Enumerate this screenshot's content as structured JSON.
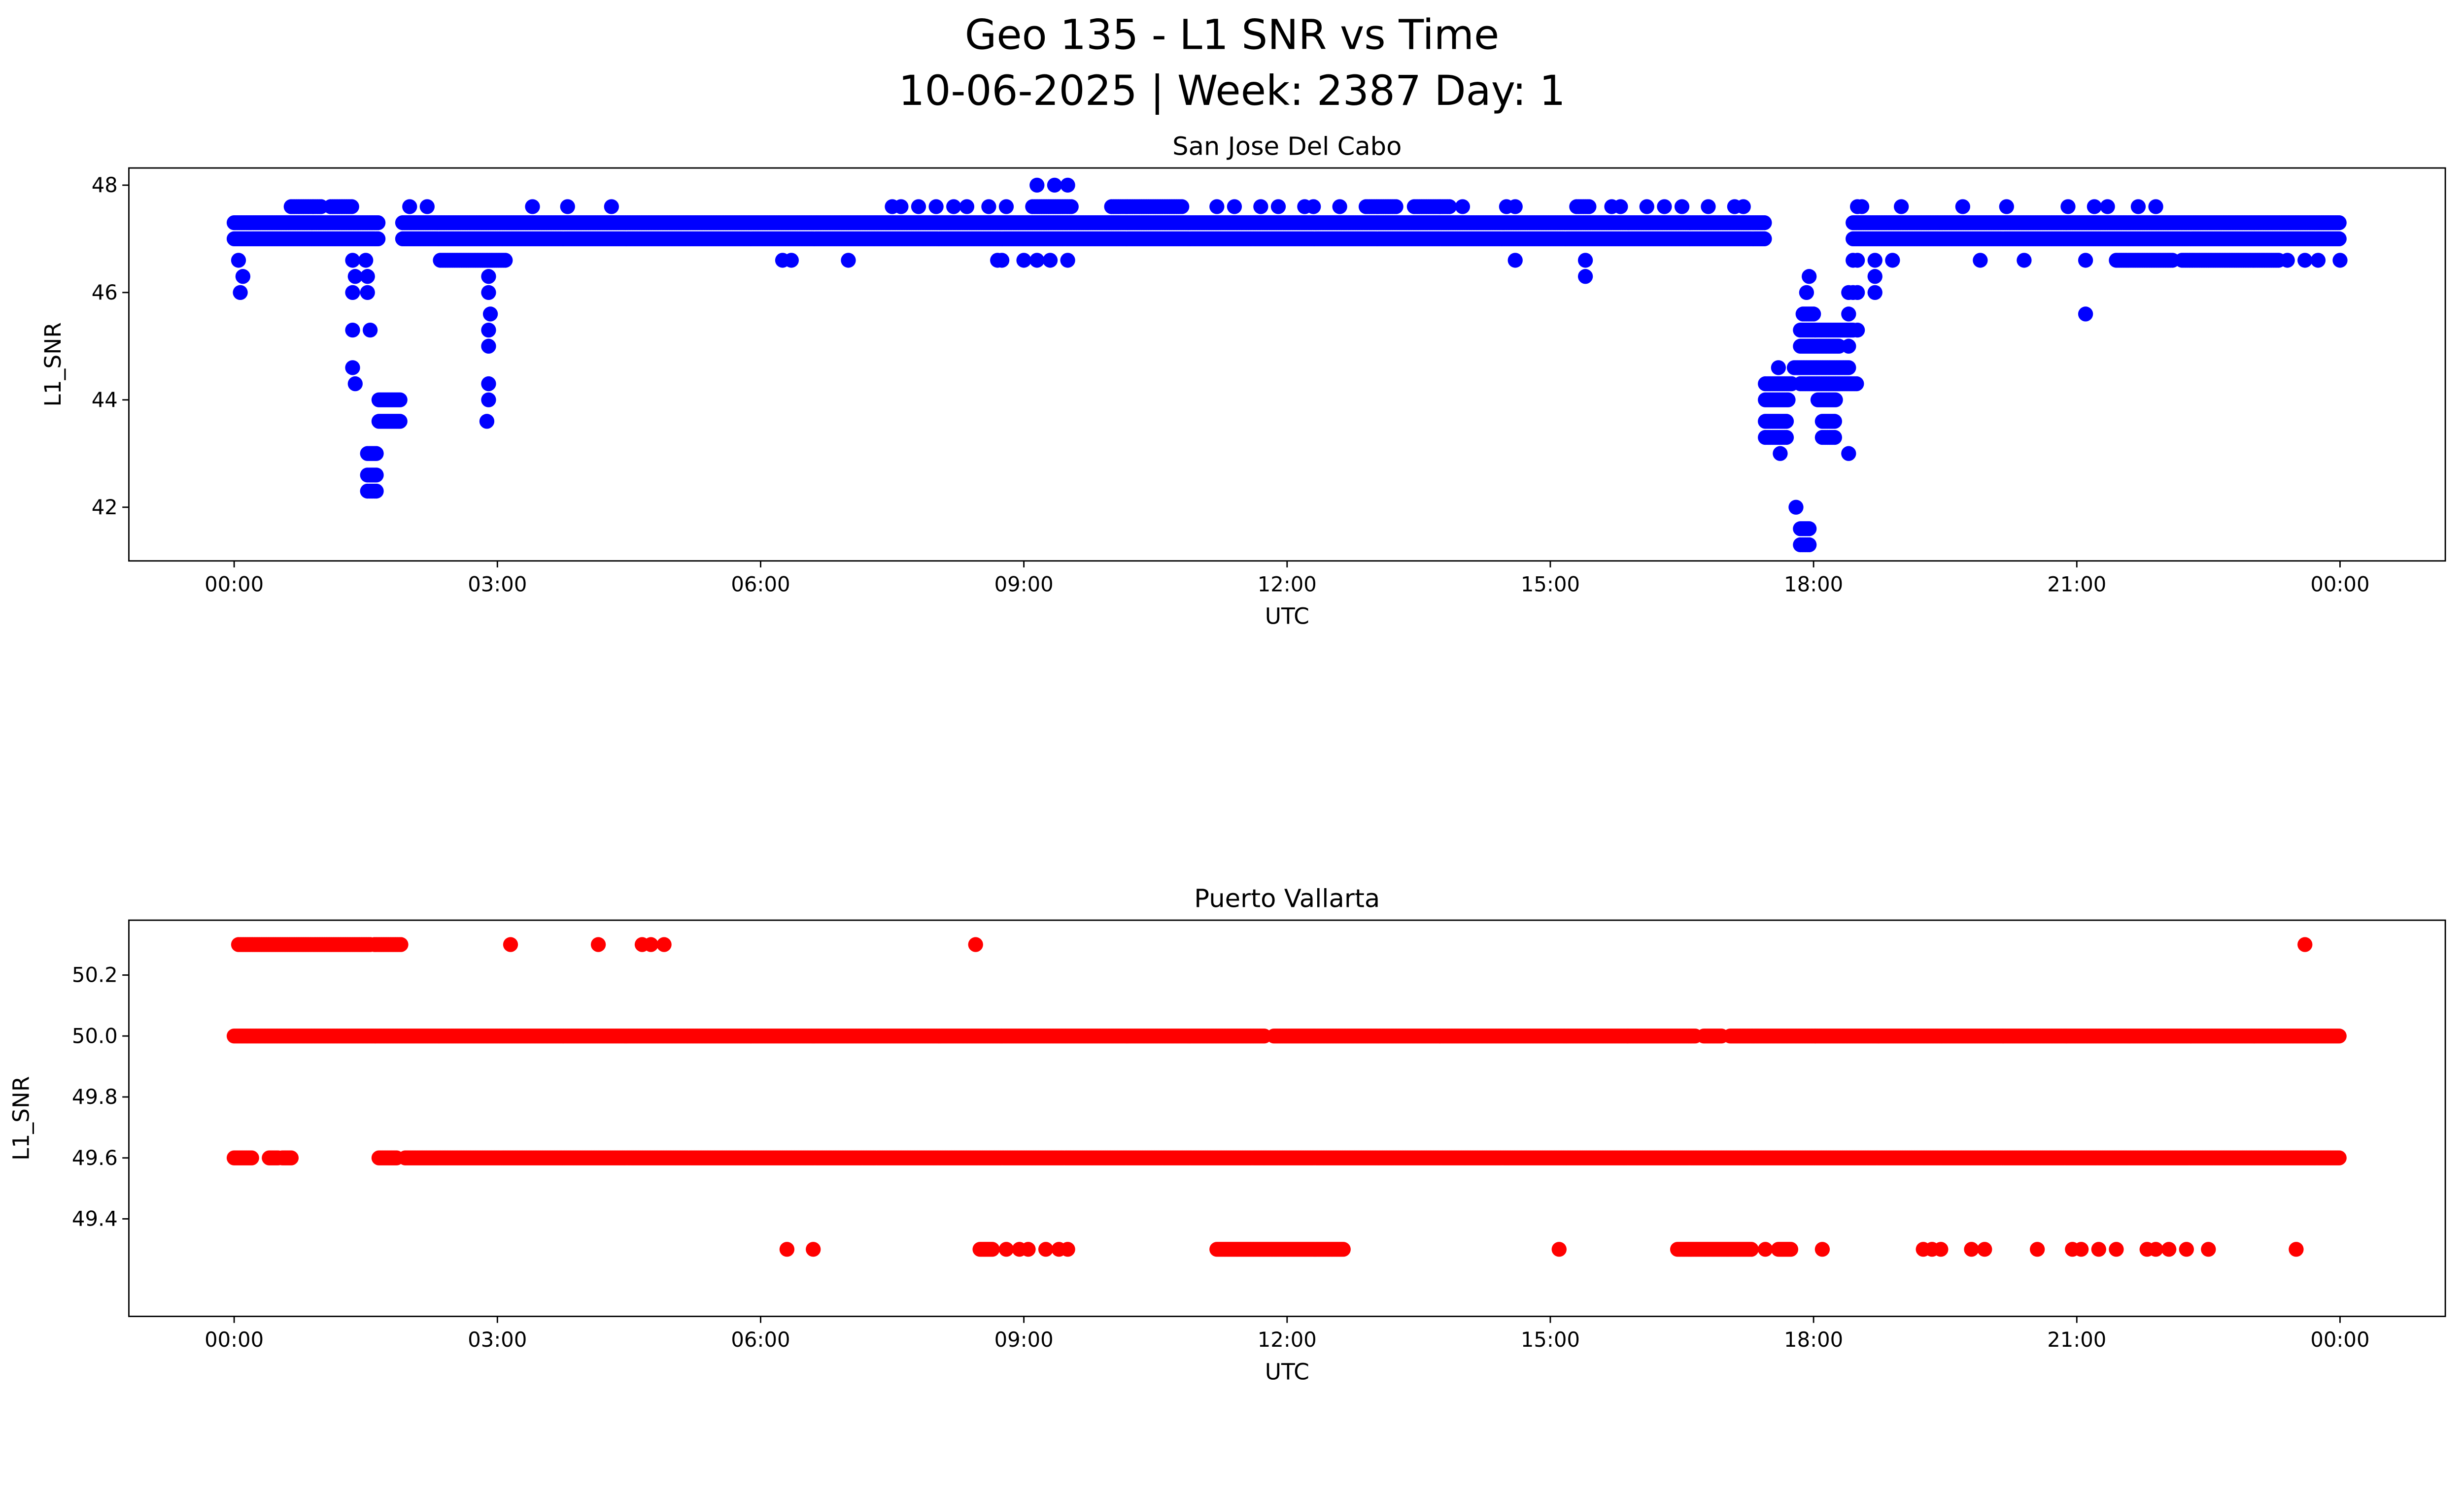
{
  "figure": {
    "title_line1": "Geo 135 - L1 SNR vs Time",
    "title_line2": "10-06-2025 | Week: 2387 Day: 1"
  },
  "chart_data": [
    {
      "type": "scatter",
      "title": "San Jose Del Cabo",
      "xlabel": "UTC",
      "ylabel": "L1_SNR",
      "color": "#0000ff",
      "x_units": "hours since 00:00 UTC",
      "xlim": [
        -1.2,
        25.2
      ],
      "ylim": [
        41.0,
        48.32
      ],
      "xticks": [
        0,
        3,
        6,
        9,
        12,
        15,
        18,
        21,
        24
      ],
      "xtick_labels": [
        "00:00",
        "03:00",
        "06:00",
        "09:00",
        "12:00",
        "15:00",
        "18:00",
        "21:00",
        "00:00"
      ],
      "yticks": [
        42,
        44,
        46,
        48
      ],
      "ytick_labels": [
        "42",
        "44",
        "46",
        "48"
      ],
      "sample_step_hours": 0.02,
      "runs": [
        [
          47.3,
          0,
          1.65
        ],
        [
          47.0,
          0,
          1.65
        ],
        [
          47.3,
          1.92,
          17.45
        ],
        [
          47.0,
          1.92,
          17.45
        ],
        [
          47.3,
          18.45,
          24
        ],
        [
          47.0,
          18.45,
          24
        ],
        [
          47.6,
          0.65,
          1.0
        ],
        [
          47.6,
          1.1,
          1.35
        ],
        [
          47.6,
          9.1,
          9.55
        ],
        [
          47.6,
          10.0,
          10.8
        ],
        [
          47.6,
          12.9,
          13.25
        ],
        [
          47.6,
          13.45,
          13.85
        ],
        [
          47.6,
          15.3,
          15.45
        ],
        [
          46.6,
          2.35,
          3.1
        ],
        [
          46.6,
          21.45,
          22.1
        ],
        [
          46.6,
          22.2,
          23.3
        ],
        [
          44.0,
          1.65,
          1.9
        ],
        [
          43.6,
          1.65,
          1.9
        ],
        [
          43.0,
          1.52,
          1.62
        ],
        [
          42.6,
          1.52,
          1.62
        ],
        [
          42.3,
          1.52,
          1.62
        ],
        [
          44.3,
          17.45,
          17.75
        ],
        [
          44.0,
          17.45,
          17.72
        ],
        [
          43.6,
          17.45,
          17.7
        ],
        [
          43.3,
          17.45,
          17.7
        ],
        [
          45.3,
          17.85,
          18.45
        ],
        [
          45.0,
          17.85,
          18.3
        ],
        [
          44.6,
          17.78,
          18.4
        ],
        [
          44.3,
          17.85,
          18.5
        ],
        [
          44.0,
          18.05,
          18.25
        ],
        [
          43.6,
          18.1,
          18.25
        ],
        [
          43.3,
          18.1,
          18.25
        ],
        [
          45.6,
          17.88,
          18.0
        ],
        [
          41.6,
          17.85,
          17.95
        ],
        [
          41.3,
          17.85,
          17.95
        ]
      ],
      "points": [
        [
          0.05,
          46.6
        ],
        [
          0.1,
          46.3
        ],
        [
          0.07,
          46.0
        ],
        [
          1.35,
          46.6
        ],
        [
          1.5,
          46.6
        ],
        [
          1.38,
          46.3
        ],
        [
          1.52,
          46.3
        ],
        [
          1.35,
          46.0
        ],
        [
          1.52,
          46.0
        ],
        [
          1.35,
          45.3
        ],
        [
          1.55,
          45.3
        ],
        [
          1.35,
          44.6
        ],
        [
          1.38,
          44.3
        ],
        [
          2.0,
          47.6
        ],
        [
          2.2,
          47.6
        ],
        [
          2.9,
          46.3
        ],
        [
          2.9,
          46.0
        ],
        [
          2.92,
          45.6
        ],
        [
          2.9,
          45.3
        ],
        [
          2.9,
          45.0
        ],
        [
          2.9,
          44.3
        ],
        [
          2.9,
          44.0
        ],
        [
          2.88,
          43.6
        ],
        [
          3.4,
          47.6
        ],
        [
          3.8,
          47.6
        ],
        [
          4.3,
          47.6
        ],
        [
          6.25,
          46.6
        ],
        [
          6.35,
          46.6
        ],
        [
          7.0,
          46.6
        ],
        [
          7.5,
          47.6
        ],
        [
          7.6,
          47.6
        ],
        [
          7.8,
          47.6
        ],
        [
          8.0,
          47.6
        ],
        [
          8.2,
          47.6
        ],
        [
          8.35,
          47.6
        ],
        [
          8.6,
          47.6
        ],
        [
          8.8,
          47.6
        ],
        [
          8.7,
          46.6
        ],
        [
          8.75,
          46.6
        ],
        [
          9.0,
          46.6
        ],
        [
          9.15,
          46.6
        ],
        [
          9.3,
          46.6
        ],
        [
          9.5,
          46.6
        ],
        [
          9.15,
          48.0
        ],
        [
          9.35,
          48.0
        ],
        [
          9.5,
          48.0
        ],
        [
          11.2,
          47.6
        ],
        [
          11.4,
          47.6
        ],
        [
          11.7,
          47.6
        ],
        [
          11.9,
          47.6
        ],
        [
          12.2,
          47.6
        ],
        [
          12.3,
          47.6
        ],
        [
          12.6,
          47.6
        ],
        [
          14.0,
          47.6
        ],
        [
          14.5,
          47.6
        ],
        [
          14.6,
          47.6
        ],
        [
          14.6,
          46.6
        ],
        [
          15.4,
          46.6
        ],
        [
          15.4,
          46.3
        ],
        [
          15.7,
          47.6
        ],
        [
          15.8,
          47.6
        ],
        [
          16.1,
          47.6
        ],
        [
          16.3,
          47.6
        ],
        [
          16.5,
          47.6
        ],
        [
          16.8,
          47.6
        ],
        [
          17.1,
          47.6
        ],
        [
          17.2,
          47.6
        ],
        [
          17.6,
          44.6
        ],
        [
          17.62,
          43.0
        ],
        [
          17.8,
          42.0
        ],
        [
          17.95,
          46.3
        ],
        [
          17.92,
          46.0
        ],
        [
          18.4,
          46.0
        ],
        [
          18.45,
          46.0
        ],
        [
          18.5,
          46.0
        ],
        [
          18.5,
          46.6
        ],
        [
          18.45,
          46.6
        ],
        [
          18.4,
          45.6
        ],
        [
          18.5,
          45.3
        ],
        [
          18.4,
          45.0
        ],
        [
          18.4,
          43.0
        ],
        [
          18.5,
          47.6
        ],
        [
          18.55,
          47.6
        ],
        [
          18.7,
          46.6
        ],
        [
          18.7,
          46.3
        ],
        [
          18.7,
          46.0
        ],
        [
          18.9,
          46.6
        ],
        [
          19.0,
          47.6
        ],
        [
          19.7,
          47.6
        ],
        [
          19.9,
          46.6
        ],
        [
          20.2,
          47.6
        ],
        [
          20.4,
          46.6
        ],
        [
          20.9,
          47.6
        ],
        [
          21.1,
          45.6
        ],
        [
          21.1,
          46.6
        ],
        [
          21.2,
          47.6
        ],
        [
          21.35,
          47.6
        ],
        [
          21.7,
          47.6
        ],
        [
          21.9,
          47.6
        ],
        [
          23.4,
          46.6
        ],
        [
          23.6,
          46.6
        ],
        [
          23.75,
          46.6
        ],
        [
          24.0,
          46.6
        ]
      ]
    },
    {
      "type": "scatter",
      "title": "Puerto Vallarta",
      "xlabel": "UTC",
      "ylabel": "L1_SNR",
      "color": "#ff0000",
      "x_units": "hours since 00:00 UTC",
      "xlim": [
        -1.2,
        25.2
      ],
      "ylim": [
        49.08,
        50.38
      ],
      "xticks": [
        0,
        3,
        6,
        9,
        12,
        15,
        18,
        21,
        24
      ],
      "xtick_labels": [
        "00:00",
        "03:00",
        "06:00",
        "09:00",
        "12:00",
        "15:00",
        "18:00",
        "21:00",
        "00:00"
      ],
      "yticks": [
        49.4,
        49.6,
        49.8,
        50.0,
        50.2
      ],
      "ytick_labels": [
        "49.4",
        "49.6",
        "49.8",
        "50.0",
        "50.2"
      ],
      "sample_step_hours": 0.02,
      "runs": [
        [
          50.0,
          0,
          11.75
        ],
        [
          50.0,
          11.85,
          16.65
        ],
        [
          50.0,
          16.75,
          16.95
        ],
        [
          50.0,
          17.05,
          24
        ],
        [
          49.6,
          0,
          0.2
        ],
        [
          49.6,
          0.4,
          0.5
        ],
        [
          49.6,
          0.55,
          0.65
        ],
        [
          49.6,
          1.65,
          1.85
        ],
        [
          49.6,
          1.95,
          24
        ],
        [
          50.3,
          0.05,
          1.55
        ],
        [
          50.3,
          1.6,
          1.9
        ],
        [
          49.3,
          8.5,
          8.65
        ],
        [
          49.3,
          11.2,
          12.65
        ],
        [
          49.3,
          16.45,
          17.3
        ],
        [
          49.3,
          17.6,
          17.75
        ]
      ],
      "points": [
        [
          3.15,
          50.3
        ],
        [
          4.15,
          50.3
        ],
        [
          4.65,
          50.3
        ],
        [
          4.75,
          50.3
        ],
        [
          4.9,
          50.3
        ],
        [
          8.45,
          50.3
        ],
        [
          23.6,
          50.3
        ],
        [
          6.3,
          49.3
        ],
        [
          6.6,
          49.3
        ],
        [
          8.8,
          49.3
        ],
        [
          8.95,
          49.3
        ],
        [
          9.05,
          49.3
        ],
        [
          9.25,
          49.3
        ],
        [
          9.4,
          49.3
        ],
        [
          9.5,
          49.3
        ],
        [
          15.1,
          49.3
        ],
        [
          17.45,
          49.3
        ],
        [
          18.1,
          49.3
        ],
        [
          19.25,
          49.3
        ],
        [
          19.35,
          49.3
        ],
        [
          19.45,
          49.3
        ],
        [
          19.8,
          49.3
        ],
        [
          19.95,
          49.3
        ],
        [
          20.55,
          49.3
        ],
        [
          20.95,
          49.3
        ],
        [
          21.05,
          49.3
        ],
        [
          21.25,
          49.3
        ],
        [
          21.45,
          49.3
        ],
        [
          21.8,
          49.3
        ],
        [
          21.9,
          49.3
        ],
        [
          22.05,
          49.3
        ],
        [
          22.25,
          49.3
        ],
        [
          22.5,
          49.3
        ],
        [
          23.5,
          49.3
        ]
      ]
    }
  ]
}
